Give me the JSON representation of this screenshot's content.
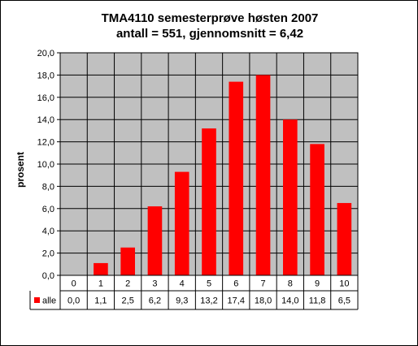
{
  "chart_data": {
    "type": "bar",
    "title": "TMA4110 semesterprøve høsten 2007",
    "subtitle": "antall = 551, gjennomsnitt = 6,42",
    "xlabel": "",
    "ylabel": "prosent",
    "ylim": [
      0,
      20
    ],
    "ytick_step": 2,
    "yticks": [
      "0,0",
      "2,0",
      "4,0",
      "6,0",
      "8,0",
      "10,0",
      "12,0",
      "14,0",
      "16,0",
      "18,0",
      "20,0"
    ],
    "categories": [
      "0",
      "1",
      "2",
      "3",
      "4",
      "5",
      "6",
      "7",
      "8",
      "9",
      "10"
    ],
    "series": [
      {
        "name": "alle",
        "color": "#ff0000",
        "values": [
          0.0,
          1.1,
          2.5,
          6.2,
          9.3,
          13.2,
          17.4,
          18.0,
          14.0,
          11.8,
          6.5
        ],
        "labels": [
          "0,0",
          "1,1",
          "2,5",
          "6,2",
          "9,3",
          "13,2",
          "17,4",
          "18,0",
          "14,0",
          "11,8",
          "6,5"
        ]
      }
    ],
    "plot_background": "#c0c0c0",
    "grid": true,
    "legend": "data-table"
  }
}
